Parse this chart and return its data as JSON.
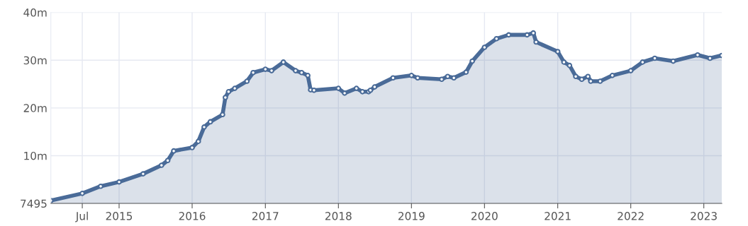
{
  "chart_data": {
    "type": "area",
    "x": [
      "2014-01-25",
      "2014-07-01",
      "2014-10-01",
      "2015-01-01",
      "2015-05-01",
      "2015-08-01",
      "2015-09-01",
      "2015-10-01",
      "2016-01-01",
      "2016-02-01",
      "2016-03-01",
      "2016-04-01",
      "2016-06-01",
      "2016-06-15",
      "2016-07-01",
      "2016-08-01",
      "2016-10-01",
      "2016-11-01",
      "2017-01-01",
      "2017-02-01",
      "2017-04-01",
      "2017-06-01",
      "2017-07-01",
      "2017-08-01",
      "2017-08-15",
      "2017-09-01",
      "2018-01-01",
      "2018-02-01",
      "2018-04-01",
      "2018-05-01",
      "2018-06-01",
      "2018-06-10",
      "2018-07-01",
      "2018-10-01",
      "2019-01-01",
      "2019-02-01",
      "2019-06-01",
      "2019-07-01",
      "2019-08-01",
      "2019-10-01",
      "2019-11-01",
      "2020-01-01",
      "2020-03-01",
      "2020-05-01",
      "2020-08-01",
      "2020-09-01",
      "2020-09-15",
      "2021-01-01",
      "2021-02-01",
      "2021-03-01",
      "2021-04-01",
      "2021-05-01",
      "2021-06-01",
      "2021-06-15",
      "2021-08-01",
      "2021-10-01",
      "2022-01-01",
      "2022-03-01",
      "2022-05-01",
      "2022-08-01",
      "2022-12-01",
      "2023-02-01",
      "2023-04-01"
    ],
    "series": [
      {
        "color": "#4a6b98",
        "values": [
          600000,
          2100000,
          3600000,
          4500000,
          6200000,
          8000000,
          9000000,
          11000000,
          11700000,
          13000000,
          16000000,
          17100000,
          18600000,
          22200000,
          23400000,
          24100000,
          25600000,
          27400000,
          28100000,
          27800000,
          29600000,
          27800000,
          27400000,
          26800000,
          23800000,
          23700000,
          24100000,
          23100000,
          24100000,
          23400000,
          23400000,
          23700000,
          24400000,
          26300000,
          26800000,
          26300000,
          26000000,
          26600000,
          26300000,
          27500000,
          29800000,
          32700000,
          34500000,
          35300000,
          35300000,
          35700000,
          33800000,
          31800000,
          29600000,
          28900000,
          26600000,
          26000000,
          26600000,
          25600000,
          25600000,
          26800000,
          27800000,
          29600000,
          30400000,
          29800000,
          31100000,
          30400000,
          31000000
        ]
      }
    ],
    "xlim": [
      "2014-01-25",
      "2023-04-01"
    ],
    "xticks": [
      {
        "value": "2014-07-01",
        "label": "Jul"
      },
      {
        "value": "2015-01-01",
        "label": "2015"
      },
      {
        "value": "2016-01-01",
        "label": "2016"
      },
      {
        "value": "2017-01-01",
        "label": "2017"
      },
      {
        "value": "2018-01-01",
        "label": "2018"
      },
      {
        "value": "2019-01-01",
        "label": "2019"
      },
      {
        "value": "2020-01-01",
        "label": "2020"
      },
      {
        "value": "2021-01-01",
        "label": "2021"
      },
      {
        "value": "2022-01-01",
        "label": "2022"
      },
      {
        "value": "2023-01-01",
        "label": "2023"
      }
    ],
    "ylim": [
      7495,
      40000000
    ],
    "yticks": [
      {
        "value": 7495,
        "label": "7495"
      },
      {
        "value": 10000000,
        "label": "10m"
      },
      {
        "value": 20000000,
        "label": "20m"
      },
      {
        "value": 30000000,
        "label": "30m"
      },
      {
        "value": 40000000,
        "label": "40m"
      }
    ],
    "grid": true,
    "marker": "circle",
    "line_style": "solid"
  }
}
